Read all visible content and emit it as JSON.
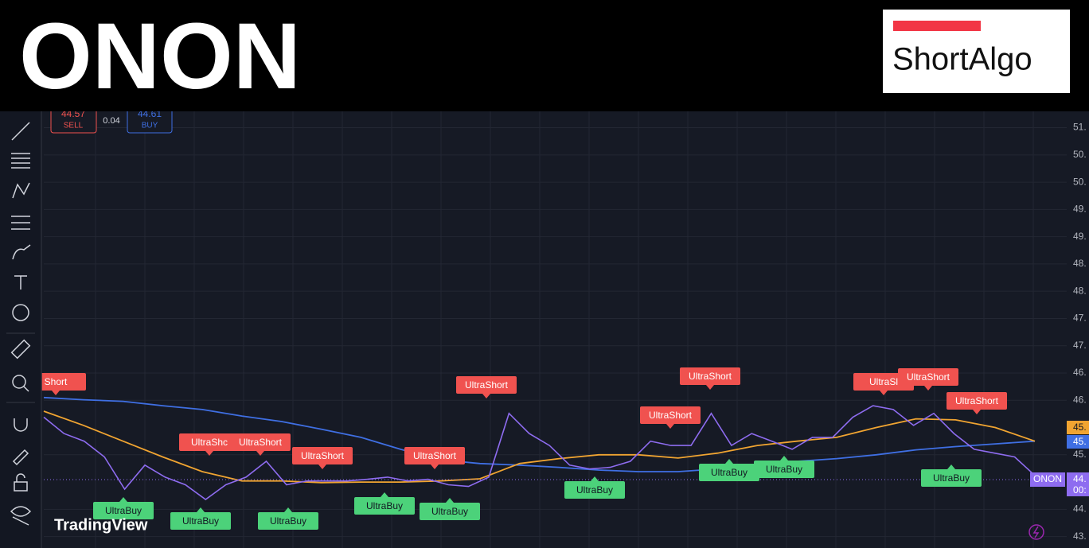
{
  "header": {
    "ticker": "ONON",
    "logo": "ShortAlgo"
  },
  "trade_box": {
    "sell_price": "44.57",
    "sell_label": "SELL",
    "spread": "0.04",
    "buy_price": "44.61",
    "buy_label": "BUY"
  },
  "watermark": "TradingView",
  "axis_tags": {
    "orange": "45.",
    "blue": "45.",
    "symbol": "ONON",
    "price": "44.",
    "countdown": "00:"
  },
  "chart_data": {
    "type": "line",
    "ylim": [
      43.29,
      51.3
    ],
    "yticks": [
      {
        "value": 51,
        "label": "51."
      },
      {
        "value": 50.5,
        "label": "50."
      },
      {
        "value": 50,
        "label": "50."
      },
      {
        "value": 49.5,
        "label": "49."
      },
      {
        "value": 49,
        "label": "49."
      },
      {
        "value": 48.5,
        "label": "48."
      },
      {
        "value": 48,
        "label": "48."
      },
      {
        "value": 47.5,
        "label": "47."
      },
      {
        "value": 47,
        "label": "47."
      },
      {
        "value": 46.5,
        "label": "46."
      },
      {
        "value": 46,
        "label": "46."
      },
      {
        "value": 45,
        "label": "45."
      },
      {
        "value": 44,
        "label": "44."
      },
      {
        "value": 43.5,
        "label": "43."
      }
    ],
    "grid": true,
    "series": [
      {
        "color": "#8e6cf0",
        "values": [
          45.69,
          45.39,
          45.25,
          44.96,
          44.37,
          44.81,
          44.59,
          44.45,
          44.18,
          44.45,
          44.59,
          44.88,
          44.45,
          44.52,
          44.52,
          44.52,
          44.55,
          44.59,
          44.52,
          44.55,
          44.45,
          44.42,
          44.59,
          45.76,
          45.39,
          45.17,
          44.81,
          44.74,
          44.77,
          44.88,
          45.25,
          45.17,
          45.17,
          45.76,
          45.17,
          45.39,
          45.25,
          45.1,
          45.32,
          45.32,
          45.69,
          45.9,
          45.83,
          45.54,
          45.76,
          45.39,
          45.1,
          45.03,
          44.96,
          44.62
        ]
      },
      {
        "color": "#f0a431",
        "values": [
          45.8,
          45.54,
          45.25,
          44.96,
          44.69,
          44.52,
          44.52,
          44.49,
          44.5,
          44.5,
          44.52,
          44.56,
          44.84,
          44.93,
          45.0,
          45.0,
          44.94,
          45.03,
          45.17,
          45.25,
          45.32,
          45.5,
          45.66,
          45.64,
          45.5,
          45.25
        ]
      },
      {
        "color": "#3f6fe3",
        "values": [
          46.05,
          46.01,
          45.98,
          45.9,
          45.83,
          45.71,
          45.61,
          45.47,
          45.32,
          45.1,
          44.91,
          44.84,
          44.81,
          44.77,
          44.72,
          44.69,
          44.69,
          44.74,
          44.81,
          44.88,
          44.93,
          45.0,
          45.09,
          45.15,
          45.2,
          45.25
        ]
      }
    ],
    "annotations": [
      "Short",
      "UltraBuy",
      "UltraShc",
      "UltraShort",
      "UltraBuy",
      "UltraBuy",
      "UltraShort",
      "UltraBuy",
      "UltraShort",
      "UltraBuy",
      "UltraShort",
      "UltraBuy",
      "UltraShort",
      "UltraShort",
      "UltraBuy",
      "UltraBuy",
      "UltraSl",
      "UltraShort",
      "UltraShort",
      "UltraBuy"
    ]
  }
}
